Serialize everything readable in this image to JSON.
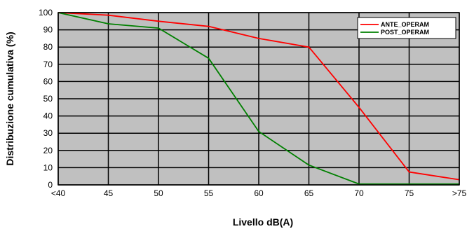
{
  "chart_data": {
    "type": "line",
    "categories": [
      "<40",
      "45",
      "50",
      "55",
      "60",
      "65",
      "70",
      "75",
      ">75"
    ],
    "series": [
      {
        "name": "ANTE_OPERAM",
        "color": "#ff0000",
        "values": [
          100,
          98.5,
          95,
          92,
          85,
          80,
          45,
          7.5,
          3
        ]
      },
      {
        "name": "POST_OPERAM",
        "color": "#008000",
        "values": [
          100,
          93.5,
          91,
          73.5,
          31,
          11.5,
          0.5,
          0.5,
          0.5
        ]
      }
    ],
    "xlabel": "Livello dB(A)",
    "ylabel": "Distribuzione cumulativa (%)",
    "ylim": [
      0,
      100
    ],
    "yticks": [
      0,
      10,
      20,
      30,
      40,
      50,
      60,
      70,
      80,
      90,
      100
    ],
    "grid": true,
    "legend_position": "top-right",
    "plot_background": "#c0c0c0"
  }
}
